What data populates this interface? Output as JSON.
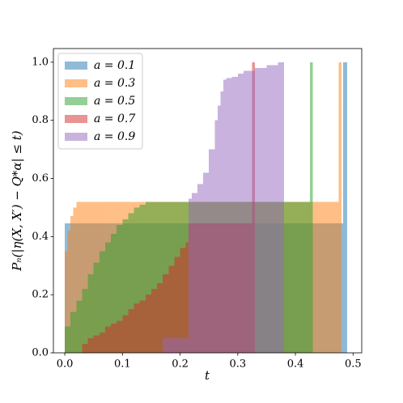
{
  "chart_data": {
    "type": "histogram",
    "xlabel": "t",
    "ylabel": "Pₙ(|η(X, X′) − Q*α| ≤ t)",
    "xlim": [
      -0.0197,
      0.515
    ],
    "ylim": [
      0,
      1.047
    ],
    "xticks": [
      {
        "value": 0,
        "label": "0.0"
      },
      0.1,
      0.2,
      0.3,
      0.4,
      0.5
    ],
    "yticks": [
      {
        "value": 0,
        "label": "0.0"
      },
      0.2,
      0.4,
      0.6,
      0.8,
      {
        "value": 1,
        "label": "1.0"
      }
    ],
    "legend": "upper left",
    "alpha": 0.5,
    "series": [
      {
        "name": "a = 0.1",
        "color": "#1f77b4",
        "bins": [
          0,
          0.483,
          0.49
        ],
        "values": [
          0.445,
          1.0
        ]
      },
      {
        "name": "a = 0.3",
        "color": "#ff7f0e",
        "bins": [
          0,
          0.005,
          0.01,
          0.015,
          0.02,
          0.475,
          0.48
        ],
        "values": [
          0.35,
          0.42,
          0.47,
          0.5,
          0.52,
          1.0
        ]
      },
      {
        "name": "a = 0.5",
        "color": "#2ca02c",
        "bins": [
          0,
          0.01,
          0.02,
          0.03,
          0.04,
          0.05,
          0.06,
          0.07,
          0.08,
          0.09,
          0.1,
          0.11,
          0.12,
          0.13,
          0.14,
          0.425,
          0.43
        ],
        "values": [
          0.09,
          0.14,
          0.18,
          0.22,
          0.27,
          0.31,
          0.35,
          0.38,
          0.41,
          0.44,
          0.46,
          0.48,
          0.5,
          0.51,
          0.52,
          1.0
        ]
      },
      {
        "name": "a = 0.7",
        "color": "#d62728",
        "bins": [
          0.03,
          0.04,
          0.05,
          0.06,
          0.07,
          0.08,
          0.09,
          0.1,
          0.11,
          0.12,
          0.13,
          0.14,
          0.15,
          0.16,
          0.17,
          0.18,
          0.19,
          0.2,
          0.21,
          0.215,
          0.325,
          0.33
        ],
        "values": [
          0.03,
          0.05,
          0.06,
          0.07,
          0.09,
          0.1,
          0.11,
          0.13,
          0.15,
          0.17,
          0.18,
          0.2,
          0.22,
          0.24,
          0.27,
          0.3,
          0.33,
          0.36,
          0.38,
          0.445,
          1.0
        ]
      },
      {
        "name": "a = 0.9",
        "color": "#9467bd",
        "bins": [
          0.17,
          0.215,
          0.22,
          0.23,
          0.24,
          0.25,
          0.26,
          0.265,
          0.27,
          0.275,
          0.28,
          0.29,
          0.3,
          0.31,
          0.33,
          0.35,
          0.37,
          0.38
        ],
        "values": [
          0.05,
          0.53,
          0.55,
          0.58,
          0.62,
          0.7,
          0.8,
          0.85,
          0.9,
          0.94,
          0.945,
          0.95,
          0.96,
          0.97,
          0.98,
          0.99,
          1.0
        ]
      }
    ]
  }
}
